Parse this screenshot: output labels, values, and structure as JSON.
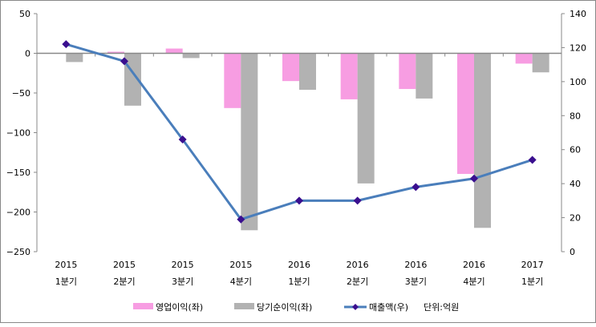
{
  "chart_data": {
    "type": "bar",
    "title": "",
    "categories": [
      {
        "year": "2015",
        "quarter": "1분기"
      },
      {
        "year": "2015",
        "quarter": "2분기"
      },
      {
        "year": "2015",
        "quarter": "3분기"
      },
      {
        "year": "2015",
        "quarter": "4분기"
      },
      {
        "year": "2016",
        "quarter": "1분기"
      },
      {
        "year": "2016",
        "quarter": "2분기"
      },
      {
        "year": "2016",
        "quarter": "3분기"
      },
      {
        "year": "2016",
        "quarter": "4분기"
      },
      {
        "year": "2017",
        "quarter": "1분기"
      }
    ],
    "series": [
      {
        "name": "영업이익(좌)",
        "type": "bar",
        "axis": "left",
        "color": "#f79de2",
        "values": [
          0,
          2,
          6,
          -69,
          -35,
          -58,
          -45,
          -152,
          -13
        ]
      },
      {
        "name": "당기순이익(좌)",
        "type": "bar",
        "axis": "left",
        "color": "#b2b2b2",
        "values": [
          -11,
          -66,
          -6,
          -223,
          -46,
          -164,
          -57,
          -220,
          -24
        ]
      },
      {
        "name": "매출액(우)",
        "type": "line",
        "axis": "right",
        "color": "#4a7ebb",
        "marker_color": "#3a0f8f",
        "values": [
          122,
          112,
          66,
          19,
          30,
          30,
          38,
          43,
          54
        ]
      }
    ],
    "unit_note": "단위:억원",
    "left_axis": {
      "range": [
        -250,
        50
      ],
      "ticks": [
        50,
        0,
        -50,
        -100,
        -150,
        -200,
        -250
      ]
    },
    "right_axis": {
      "range": [
        0,
        140
      ],
      "ticks": [
        140,
        120,
        100,
        80,
        60,
        40,
        20,
        0
      ]
    },
    "grid": false,
    "legend_position": "bottom"
  }
}
